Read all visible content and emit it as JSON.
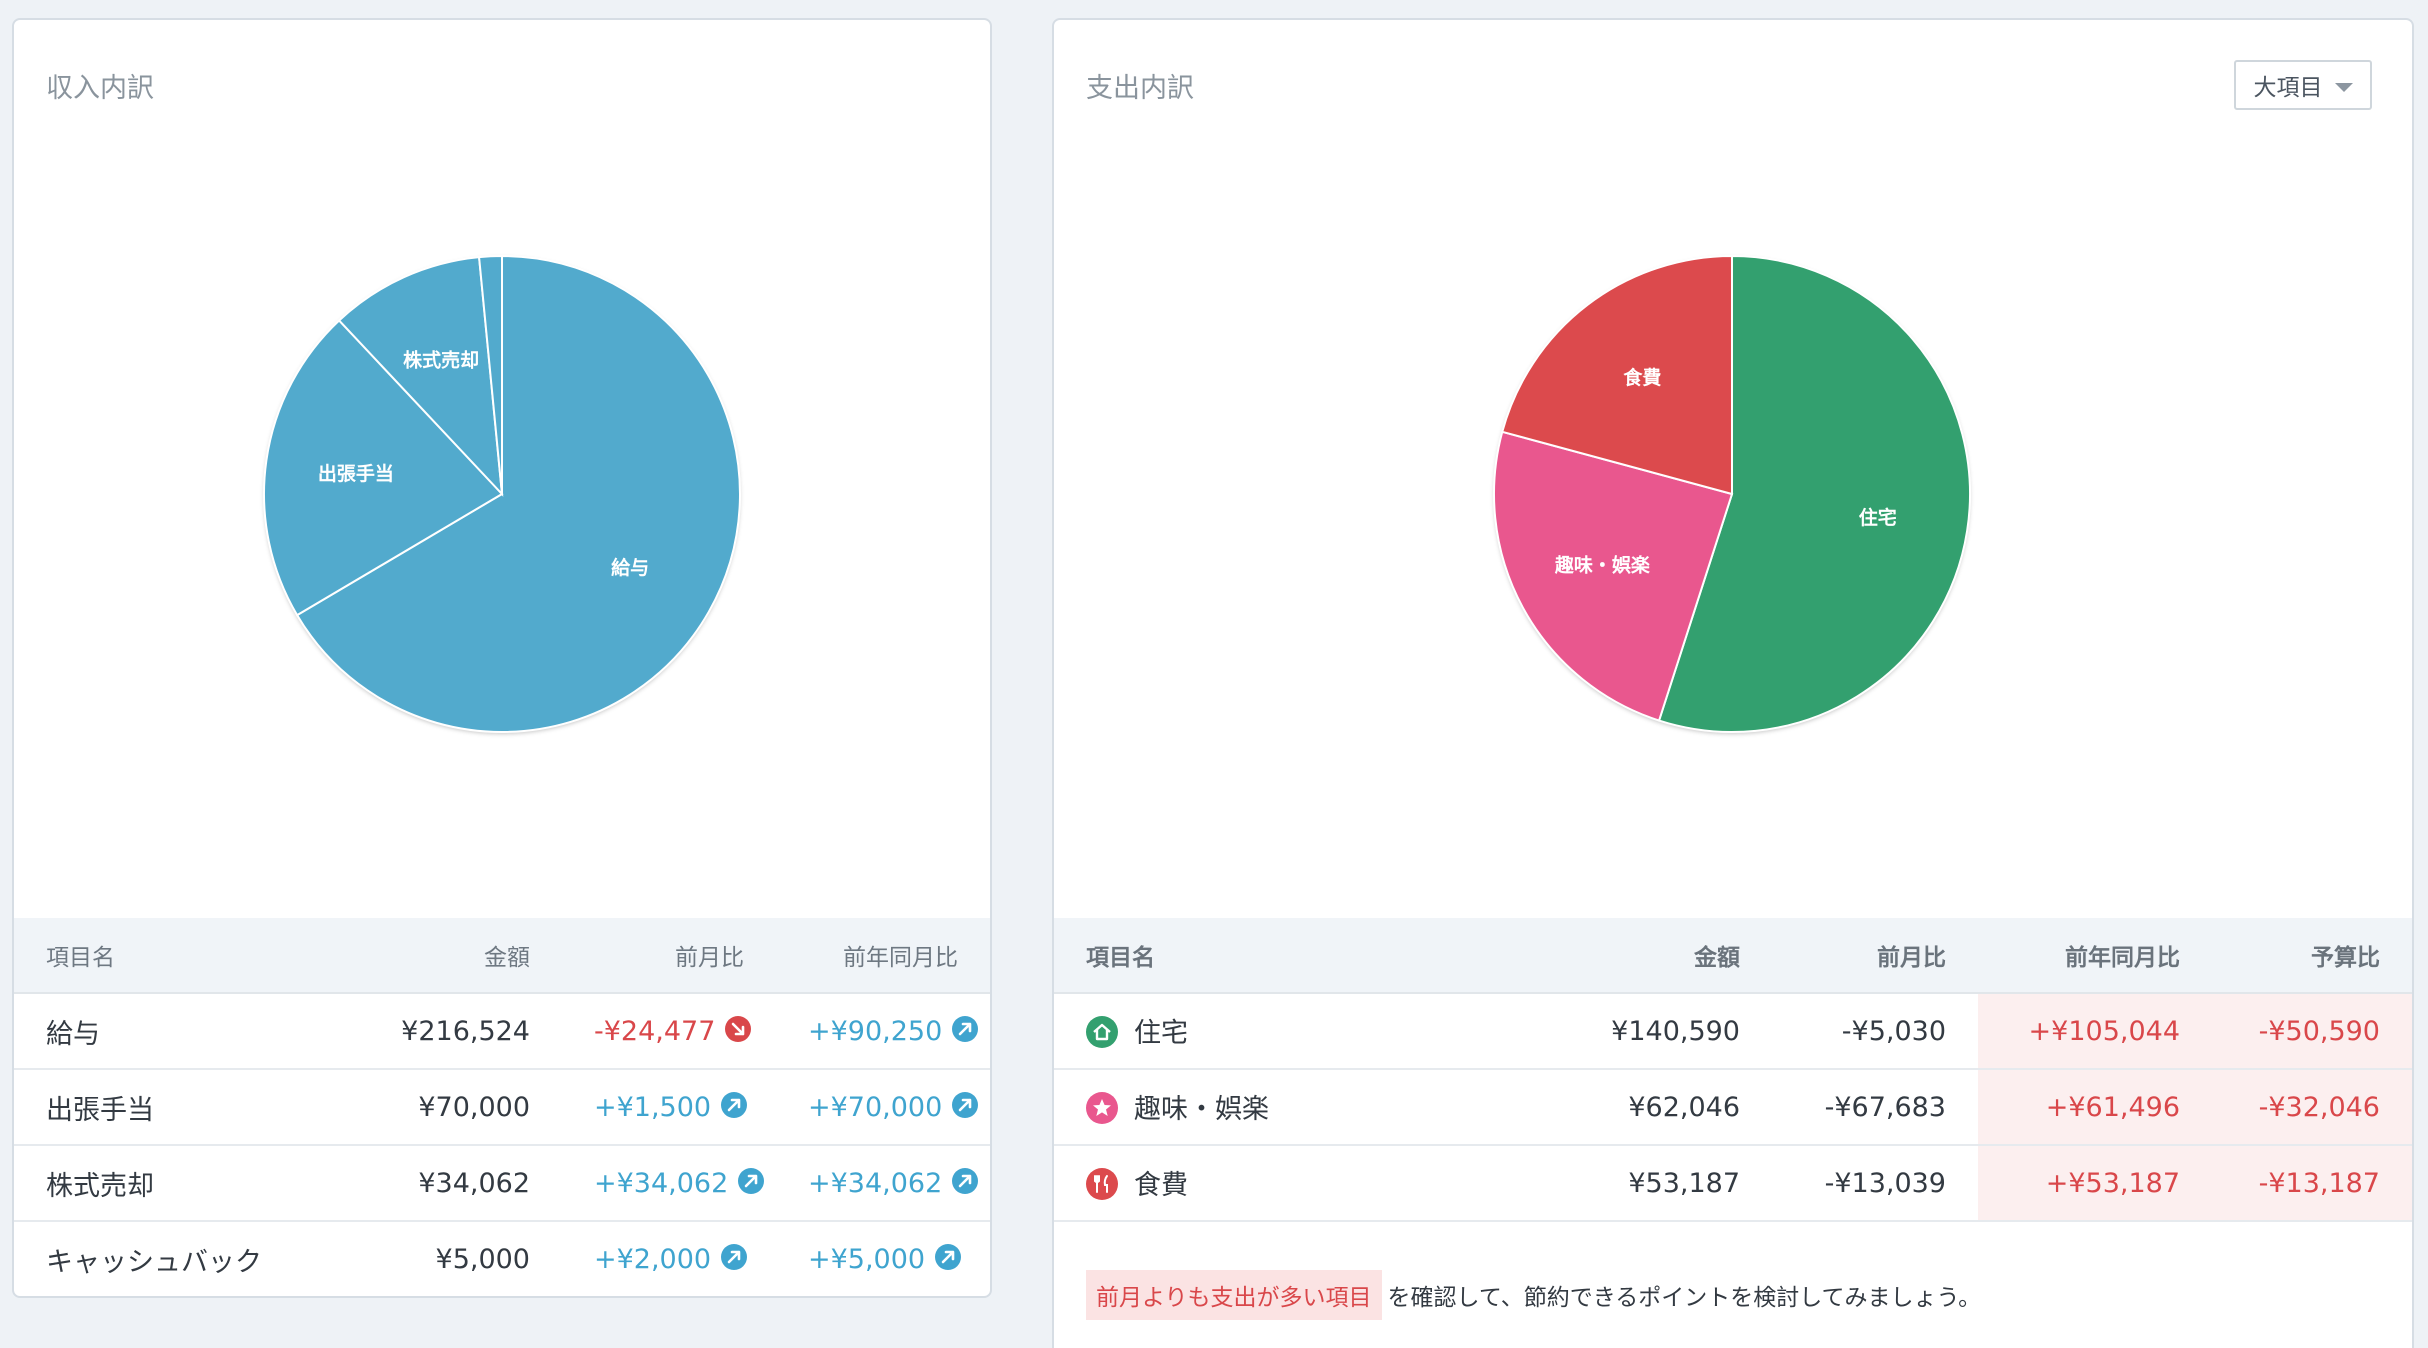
{
  "income": {
    "title": "収入内訳",
    "table": {
      "headers": [
        "項目名",
        "金額",
        "前月比",
        "前年同月比"
      ],
      "rows": [
        {
          "name": "給与",
          "amount": "¥216,524",
          "mom": "-¥24,477",
          "mom_dir": "down",
          "yoy": "+¥90,250",
          "yoy_dir": "up"
        },
        {
          "name": "出張手当",
          "amount": "¥70,000",
          "mom": "+¥1,500",
          "mom_dir": "up",
          "yoy": "+¥70,000",
          "yoy_dir": "up"
        },
        {
          "name": "株式売却",
          "amount": "¥34,062",
          "mom": "+¥34,062",
          "mom_dir": "up",
          "yoy": "+¥34,062",
          "yoy_dir": "up"
        },
        {
          "name": "キャッシュバック",
          "amount": "¥5,000",
          "mom": "+¥2,000",
          "mom_dir": "up",
          "yoy": "+¥5,000",
          "yoy_dir": "up"
        }
      ]
    }
  },
  "expense": {
    "title": "支出内訳",
    "dropdown_label": "大項目",
    "table": {
      "headers": [
        "項目名",
        "金額",
        "前月比",
        "前年同月比",
        "予算比"
      ],
      "rows": [
        {
          "name": "住宅",
          "icon": "house-icon",
          "icon_color": "#33a06f",
          "amount": "¥140,590",
          "mom": "-¥5,030",
          "yoy": "+¥105,044",
          "budget": "-¥50,590"
        },
        {
          "name": "趣味・娯楽",
          "icon": "star-icon",
          "icon_color": "#e9578e",
          "amount": "¥62,046",
          "mom": "-¥67,683",
          "yoy": "+¥61,496",
          "budget": "-¥32,046"
        },
        {
          "name": "食費",
          "icon": "fork-knife-icon",
          "icon_color": "#dc4a4d",
          "amount": "¥53,187",
          "mom": "-¥13,039",
          "yoy": "+¥53,187",
          "budget": "-¥13,187"
        }
      ]
    },
    "note": {
      "highlight": "前月よりも支出が多い項目",
      "text": "を確認して、節約できるポイントを検討してみましょう。"
    }
  },
  "colors": {
    "income_slice": "#52aacd",
    "housing": "#33a06f",
    "hobby": "#e9578e",
    "food": "#dc4a4d",
    "up": "#3fa4cf",
    "down": "#d9474a"
  },
  "chart_data": [
    {
      "type": "pie",
      "title": "収入内訳",
      "labels": [
        "給与",
        "出張手当",
        "株式売却",
        "キャッシュバック"
      ],
      "values": [
        216524,
        70000,
        34062,
        5000
      ],
      "colors": [
        "#52aacd",
        "#52aacd",
        "#52aacd",
        "#52aacd"
      ],
      "slice_labels": [
        "給与",
        "出張手当",
        "株式売却",
        ""
      ]
    },
    {
      "type": "pie",
      "title": "支出内訳",
      "labels": [
        "住宅",
        "趣味・娯楽",
        "食費"
      ],
      "values": [
        140590,
        62046,
        53187
      ],
      "colors": [
        "#33a06f",
        "#e9578e",
        "#dc4a4d"
      ],
      "slice_labels": [
        "住宅",
        "趣味・娯楽",
        "食費"
      ]
    }
  ]
}
